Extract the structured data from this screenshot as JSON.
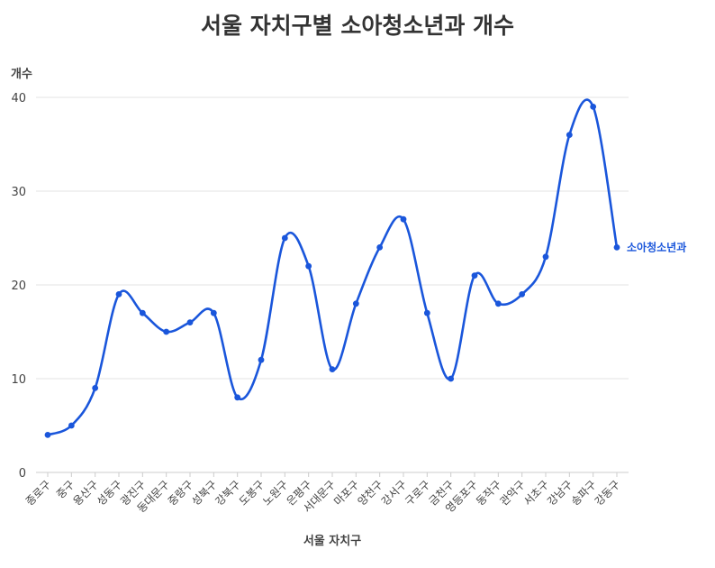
{
  "chart_data": {
    "type": "line",
    "title": "서울 자치구별 소아청소년과 개수",
    "xlabel": "서울 자치구",
    "ylabel": "개수",
    "ylim": [
      0,
      40
    ],
    "yticks": [
      0,
      10,
      20,
      30,
      40
    ],
    "grid": true,
    "categories": [
      "종로구",
      "중구",
      "용산구",
      "성동구",
      "광진구",
      "동대문구",
      "중랑구",
      "성북구",
      "강북구",
      "도봉구",
      "노원구",
      "은평구",
      "서대문구",
      "마포구",
      "양천구",
      "강서구",
      "구로구",
      "금천구",
      "영등포구",
      "동작구",
      "관악구",
      "서초구",
      "강남구",
      "송파구",
      "강동구"
    ],
    "series": [
      {
        "name": "소아청소년과",
        "color": "#1a56db",
        "values": [
          4,
          5,
          9,
          19,
          17,
          15,
          16,
          17,
          8,
          12,
          25,
          22,
          11,
          18,
          24,
          27,
          17,
          10,
          21,
          18,
          19,
          23,
          36,
          39,
          24
        ]
      }
    ]
  }
}
